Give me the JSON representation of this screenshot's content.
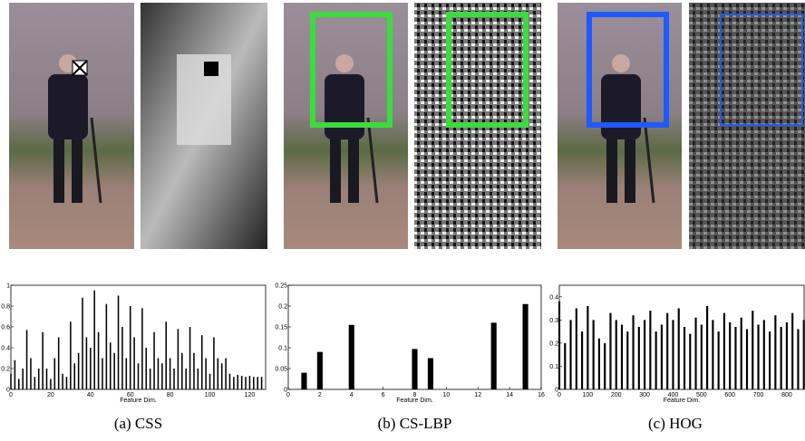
{
  "chart_data": [
    {
      "type": "bar",
      "caption": "(a) CSS",
      "xlabel": "Feature Dim.",
      "x": [
        0,
        2,
        4,
        6,
        8,
        10,
        12,
        14,
        16,
        18,
        20,
        22,
        24,
        26,
        28,
        30,
        32,
        34,
        36,
        38,
        40,
        42,
        44,
        46,
        48,
        50,
        52,
        54,
        56,
        58,
        60,
        62,
        64,
        66,
        68,
        70,
        72,
        74,
        76,
        78,
        80,
        82,
        84,
        86,
        88,
        90,
        92,
        94,
        96,
        98,
        100,
        102,
        104,
        106,
        108,
        110,
        112,
        114,
        116,
        118,
        120,
        122,
        124,
        126
      ],
      "values": [
        0.15,
        0.28,
        0.1,
        0.2,
        0.57,
        0.3,
        0.12,
        0.2,
        0.55,
        0.2,
        0.1,
        0.3,
        0.5,
        0.15,
        0.12,
        0.65,
        0.25,
        0.35,
        0.88,
        0.5,
        0.4,
        0.95,
        0.55,
        0.3,
        0.82,
        0.45,
        0.35,
        0.9,
        0.6,
        0.3,
        0.8,
        0.5,
        0.25,
        0.78,
        0.4,
        0.2,
        0.55,
        0.3,
        0.25,
        0.65,
        0.3,
        0.2,
        0.58,
        0.35,
        0.2,
        0.6,
        0.35,
        0.2,
        0.52,
        0.3,
        0.15,
        0.5,
        0.3,
        0.25,
        0.3,
        0.15,
        0.12,
        0.14,
        0.13,
        0.12,
        0.13,
        0.12,
        0.12,
        0.12
      ],
      "xlim": [
        0,
        128
      ],
      "xticks": [
        0,
        20,
        40,
        60,
        80,
        100,
        120
      ],
      "ylim": [
        0,
        1
      ],
      "yticks": [
        0,
        0.2,
        0.4,
        0.6,
        0.8,
        1
      ],
      "color": "#000000"
    },
    {
      "type": "bar",
      "caption": "(b) CS-LBP",
      "xlabel": "Feature Dim.",
      "x": [
        0,
        1,
        2,
        3,
        4,
        5,
        6,
        7,
        8,
        9,
        10,
        11,
        12,
        13,
        14,
        15
      ],
      "values": [
        0,
        0.04,
        0.09,
        0,
        0.155,
        0,
        0,
        0,
        0.097,
        0.075,
        0,
        0,
        0,
        0.16,
        0,
        0.205
      ],
      "xlim": [
        0,
        16
      ],
      "xticks": [
        0,
        2,
        4,
        6,
        8,
        10,
        12,
        14,
        16
      ],
      "ylim": [
        0,
        0.25
      ],
      "yticks": [
        0,
        0.05,
        0.1,
        0.15,
        0.2,
        0.25
      ],
      "color": "#000000"
    },
    {
      "type": "bar",
      "caption": "(c) HOG",
      "xlabel": "Feature Dim.",
      "x": [
        0,
        20,
        40,
        60,
        80,
        100,
        120,
        140,
        160,
        180,
        200,
        220,
        240,
        260,
        280,
        300,
        320,
        340,
        360,
        380,
        400,
        420,
        440,
        460,
        480,
        500,
        520,
        540,
        560,
        580,
        600,
        620,
        640,
        660,
        680,
        700,
        720,
        740,
        760,
        780,
        800,
        820,
        840,
        860,
        880
      ],
      "values": [
        0.38,
        0.2,
        0.3,
        0.35,
        0.25,
        0.36,
        0.3,
        0.22,
        0.2,
        0.33,
        0.3,
        0.28,
        0.25,
        0.32,
        0.27,
        0.3,
        0.34,
        0.25,
        0.28,
        0.33,
        0.3,
        0.35,
        0.27,
        0.24,
        0.31,
        0.28,
        0.36,
        0.3,
        0.25,
        0.33,
        0.29,
        0.27,
        0.31,
        0.26,
        0.34,
        0.28,
        0.3,
        0.25,
        0.32,
        0.27,
        0.29,
        0.33,
        0.26,
        0.3,
        0.35
      ],
      "xlim": [
        0,
        880
      ],
      "xticks": [
        0,
        100,
        200,
        300,
        400,
        500,
        600,
        700,
        800
      ],
      "ylim": [
        0,
        0.45
      ],
      "yticks": [
        0,
        0.1,
        0.2,
        0.3,
        0.4
      ],
      "color": "#000000"
    }
  ]
}
